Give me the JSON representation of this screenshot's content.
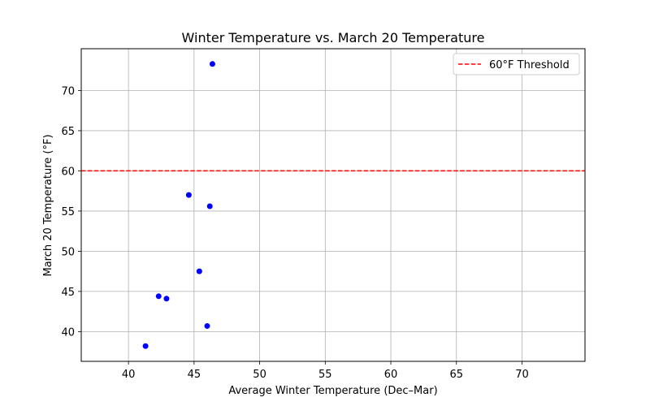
{
  "chart_data": {
    "type": "scatter",
    "title": "Winter Temperature vs. March 20 Temperature",
    "xlabel": "Average Winter Temperature (Dec–Mar)",
    "ylabel": "March 20 Temperature (°F)",
    "xlim": [
      36.4,
      74.8
    ],
    "ylim": [
      36.3,
      75.2
    ],
    "xticks": [
      40,
      45,
      50,
      55,
      60,
      65,
      70
    ],
    "yticks": [
      40,
      45,
      50,
      55,
      60,
      65,
      70
    ],
    "xtick_labels": [
      "40",
      "45",
      "50",
      "55",
      "60",
      "65",
      "70"
    ],
    "ytick_labels": [
      "40",
      "45",
      "50",
      "55",
      "60",
      "65",
      "70"
    ],
    "grid": true,
    "legend_position": "top-right",
    "series": [
      {
        "color": "#0000ff",
        "points": [
          {
            "x": 46.4,
            "y": 73.3
          },
          {
            "x": 44.6,
            "y": 57.0
          },
          {
            "x": 46.2,
            "y": 55.6
          },
          {
            "x": 45.4,
            "y": 47.5
          },
          {
            "x": 42.3,
            "y": 44.4
          },
          {
            "x": 42.9,
            "y": 44.1
          },
          {
            "x": 46.0,
            "y": 40.7
          },
          {
            "x": 41.3,
            "y": 38.2
          }
        ]
      }
    ],
    "threshold": {
      "y": 60,
      "label": "60°F Threshold",
      "color": "#ff0000",
      "style": "dashed"
    }
  }
}
